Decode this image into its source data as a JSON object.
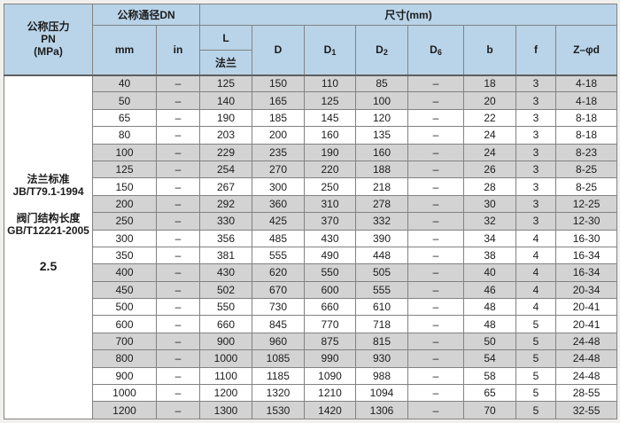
{
  "header": {
    "pressure": {
      "l1": "公称压力",
      "l2": "PN",
      "l3": "(MPa)"
    },
    "dn_title": "公称通径DN",
    "size_title": "尺寸(mm)",
    "unit_mm": "mm",
    "unit_in": "in",
    "l_label": "L",
    "l_sub": "法兰",
    "dims": [
      {
        "base": "D",
        "sub": ""
      },
      {
        "base": "D",
        "sub": "1"
      },
      {
        "base": "D",
        "sub": "2"
      },
      {
        "base": "D",
        "sub": "6"
      },
      {
        "base": "b",
        "sub": ""
      },
      {
        "base": "f",
        "sub": ""
      },
      {
        "base": "Z–φd",
        "sub": ""
      }
    ]
  },
  "sidebar": {
    "flange_std_label": "法兰标准",
    "flange_std_value": "JB/T79.1-1994",
    "valve_len_label": "阀门结构长度",
    "valve_len_value": "GB/T12221-2005",
    "pn_value": "2.5"
  },
  "table": {
    "col_ids": [
      "dn-mm",
      "dn-in",
      "l-flange",
      "d",
      "d1",
      "d2",
      "d6",
      "b",
      "f",
      "z-phi-d"
    ],
    "rows": [
      {
        "cells": [
          "40",
          "–",
          "125",
          "150",
          "110",
          "85",
          "–",
          "18",
          "3",
          "4-18"
        ],
        "shaded": true
      },
      {
        "cells": [
          "50",
          "–",
          "140",
          "165",
          "125",
          "100",
          "–",
          "20",
          "3",
          "4-18"
        ],
        "shaded": true
      },
      {
        "cells": [
          "65",
          "–",
          "190",
          "185",
          "145",
          "120",
          "–",
          "22",
          "3",
          "8-18"
        ],
        "shaded": false
      },
      {
        "cells": [
          "80",
          "–",
          "203",
          "200",
          "160",
          "135",
          "–",
          "24",
          "3",
          "8-18"
        ],
        "shaded": false
      },
      {
        "cells": [
          "100",
          "–",
          "229",
          "235",
          "190",
          "160",
          "–",
          "24",
          "3",
          "8-23"
        ],
        "shaded": true
      },
      {
        "cells": [
          "125",
          "–",
          "254",
          "270",
          "220",
          "188",
          "–",
          "26",
          "3",
          "8-25"
        ],
        "shaded": true
      },
      {
        "cells": [
          "150",
          "–",
          "267",
          "300",
          "250",
          "218",
          "–",
          "28",
          "3",
          "8-25"
        ],
        "shaded": false
      },
      {
        "cells": [
          "200",
          "–",
          "292",
          "360",
          "310",
          "278",
          "–",
          "30",
          "3",
          "12-25"
        ],
        "shaded": true
      },
      {
        "cells": [
          "250",
          "–",
          "330",
          "425",
          "370",
          "332",
          "–",
          "32",
          "3",
          "12-30"
        ],
        "shaded": true
      },
      {
        "cells": [
          "300",
          "–",
          "356",
          "485",
          "430",
          "390",
          "–",
          "34",
          "4",
          "16-30"
        ],
        "shaded": false
      },
      {
        "cells": [
          "350",
          "–",
          "381",
          "555",
          "490",
          "448",
          "–",
          "38",
          "4",
          "16-34"
        ],
        "shaded": false
      },
      {
        "cells": [
          "400",
          "–",
          "430",
          "620",
          "550",
          "505",
          "–",
          "40",
          "4",
          "16-34"
        ],
        "shaded": true
      },
      {
        "cells": [
          "450",
          "–",
          "502",
          "670",
          "600",
          "555",
          "–",
          "46",
          "4",
          "20-34"
        ],
        "shaded": true
      },
      {
        "cells": [
          "500",
          "–",
          "550",
          "730",
          "660",
          "610",
          "–",
          "48",
          "4",
          "20-41"
        ],
        "shaded": false
      },
      {
        "cells": [
          "600",
          "–",
          "660",
          "845",
          "770",
          "718",
          "–",
          "48",
          "5",
          "20-41"
        ],
        "shaded": false
      },
      {
        "cells": [
          "700",
          "–",
          "900",
          "960",
          "875",
          "815",
          "–",
          "50",
          "5",
          "24-48"
        ],
        "shaded": true
      },
      {
        "cells": [
          "800",
          "–",
          "1000",
          "1085",
          "990",
          "930",
          "–",
          "54",
          "5",
          "24-48"
        ],
        "shaded": true
      },
      {
        "cells": [
          "900",
          "–",
          "1100",
          "1185",
          "1090",
          "988",
          "–",
          "58",
          "5",
          "24-48"
        ],
        "shaded": false
      },
      {
        "cells": [
          "1000",
          "–",
          "1200",
          "1320",
          "1210",
          "1094",
          "–",
          "65",
          "5",
          "28-55"
        ],
        "shaded": false
      },
      {
        "cells": [
          "1200",
          "–",
          "1300",
          "1530",
          "1420",
          "1306",
          "–",
          "70",
          "5",
          "32-55"
        ],
        "shaded": true
      }
    ]
  },
  "colors": {
    "header_bg": "#b9d4e9",
    "shaded_row_bg": "#d3d3d3",
    "row_bg": "#ffffff",
    "border_color": "#828282",
    "outer_border": "#5f5f5f",
    "page_bg": "#f2f0ec",
    "text_color": "#1c1c1c"
  }
}
